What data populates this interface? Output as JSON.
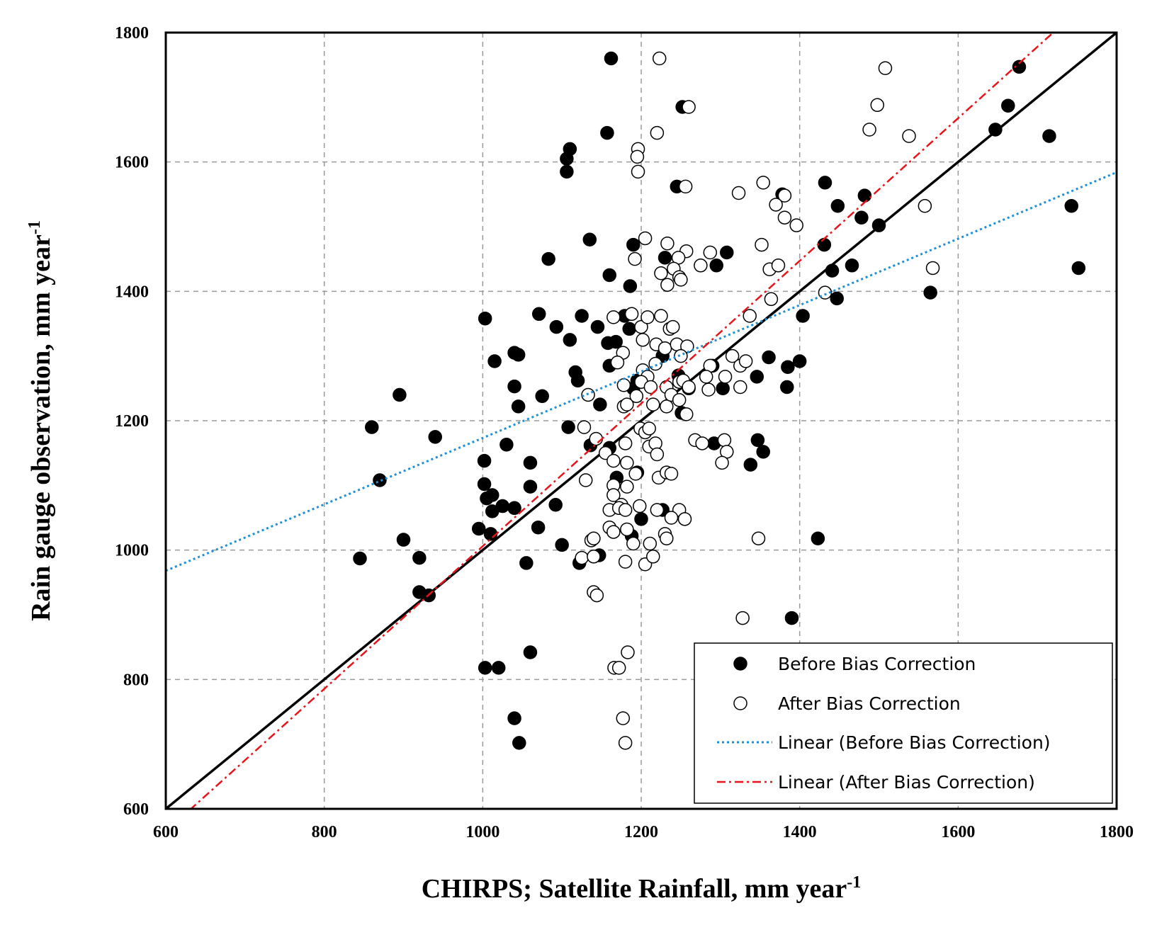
{
  "chart_data": {
    "type": "scatter",
    "title": "",
    "xlabel": "CHIRPS; Satellite Rainfall, mm year",
    "xlabel_sup": "-1",
    "ylabel": "Rain gauge observation, mm year",
    "ylabel_sup": "-1",
    "xlim": [
      600,
      1800
    ],
    "ylim": [
      600,
      1800
    ],
    "xticks": [
      "600",
      "800",
      "1000",
      "1200",
      "1400",
      "1600",
      "1800"
    ],
    "yticks": [
      "600",
      "800",
      "1000",
      "1200",
      "1400",
      "1600",
      "1800"
    ],
    "grid": true,
    "legend_position": "bottom-right",
    "colors": {
      "before": "#000000",
      "after": "#ffffff",
      "one_to_one": "#000000",
      "trend_before": "#1e90d6",
      "trend_after": "#e8141a"
    },
    "series": [
      {
        "name": "Before Bias Correction",
        "marker": "filled-circle",
        "points": [
          [
            1162,
            1760
          ],
          [
            1252,
            1685
          ],
          [
            1157,
            1645
          ],
          [
            1110,
            1620
          ],
          [
            1106,
            1605
          ],
          [
            1106,
            1585
          ],
          [
            1245,
            1562
          ],
          [
            1135,
            1480
          ],
          [
            1190,
            1472
          ],
          [
            1083,
            1450
          ],
          [
            1230,
            1452
          ],
          [
            1160,
            1425
          ],
          [
            1186,
            1408
          ],
          [
            1295,
            1440
          ],
          [
            1308,
            1460
          ],
          [
            1432,
            1568
          ],
          [
            1482,
            1548
          ],
          [
            1448,
            1532
          ],
          [
            1478,
            1514
          ],
          [
            1431,
            1472
          ],
          [
            1466,
            1440
          ],
          [
            1441,
            1432
          ],
          [
            1500,
            1502
          ],
          [
            1447,
            1389
          ],
          [
            1378,
            1550
          ],
          [
            1663,
            1687
          ],
          [
            1677,
            1747
          ],
          [
            1647,
            1650
          ],
          [
            1715,
            1640
          ],
          [
            1743,
            1532
          ],
          [
            1752,
            1436
          ],
          [
            1565,
            1398
          ],
          [
            1404,
            1362
          ],
          [
            1003,
            1358
          ],
          [
            1071,
            1365
          ],
          [
            1093,
            1345
          ],
          [
            1110,
            1325
          ],
          [
            1125,
            1362
          ],
          [
            1145,
            1345
          ],
          [
            1158,
            1320
          ],
          [
            1168,
            1322
          ],
          [
            1179,
            1362
          ],
          [
            1185,
            1342
          ],
          [
            1040,
            1305
          ],
          [
            1045,
            1302
          ],
          [
            1015,
            1292
          ],
          [
            1040,
            1253
          ],
          [
            1045,
            1222
          ],
          [
            1075,
            1238
          ],
          [
            895,
            1240
          ],
          [
            860,
            1190
          ],
          [
            940,
            1175
          ],
          [
            870,
            1108
          ],
          [
            1160,
            1285
          ],
          [
            1117,
            1275
          ],
          [
            1120,
            1262
          ],
          [
            1148,
            1225
          ],
          [
            1195,
            1262
          ],
          [
            1190,
            1250
          ],
          [
            1227,
            1300
          ],
          [
            1247,
            1270
          ],
          [
            1260,
            1250
          ],
          [
            1290,
            1285
          ],
          [
            1303,
            1250
          ],
          [
            1361,
            1298
          ],
          [
            1346,
            1268
          ],
          [
            1385,
            1283
          ],
          [
            1400,
            1292
          ],
          [
            1384,
            1252
          ],
          [
            1251,
            1212
          ],
          [
            1108,
            1190
          ],
          [
            1030,
            1163
          ],
          [
            1136,
            1162
          ],
          [
            1160,
            1158
          ],
          [
            1195,
            1120
          ],
          [
            1002,
            1138
          ],
          [
            1060,
            1135
          ],
          [
            1169,
            1112
          ],
          [
            1292,
            1165
          ],
          [
            1347,
            1170
          ],
          [
            1354,
            1152
          ],
          [
            1338,
            1132
          ],
          [
            1002,
            1102
          ],
          [
            1012,
            1085
          ],
          [
            1060,
            1098
          ],
          [
            1005,
            1080
          ],
          [
            1012,
            1060
          ],
          [
            1025,
            1068
          ],
          [
            1040,
            1065
          ],
          [
            1092,
            1070
          ],
          [
            995,
            1033
          ],
          [
            1010,
            1025
          ],
          [
            1070,
            1035
          ],
          [
            1200,
            1048
          ],
          [
            1227,
            1062
          ],
          [
            900,
            1016
          ],
          [
            845,
            987
          ],
          [
            920,
            988
          ],
          [
            1100,
            1008
          ],
          [
            1122,
            980
          ],
          [
            1147,
            992
          ],
          [
            1188,
            1022
          ],
          [
            1055,
            980
          ],
          [
            920,
            935
          ],
          [
            932,
            930
          ],
          [
            1423,
            1018
          ],
          [
            1390,
            895
          ],
          [
            1060,
            842
          ],
          [
            1003,
            818
          ],
          [
            1020,
            818
          ],
          [
            1040,
            740
          ],
          [
            1046,
            702
          ]
        ]
      },
      {
        "name": "After Bias Correction",
        "marker": "open-circle",
        "points": [
          [
            1223,
            1760
          ],
          [
            1260,
            1685
          ],
          [
            1220,
            1645
          ],
          [
            1196,
            1620
          ],
          [
            1195,
            1608
          ],
          [
            1196,
            1585
          ],
          [
            1256,
            1562
          ],
          [
            1508,
            1745
          ],
          [
            1498,
            1688
          ],
          [
            1488,
            1650
          ],
          [
            1538,
            1640
          ],
          [
            1558,
            1532
          ],
          [
            1568,
            1436
          ],
          [
            1323,
            1552
          ],
          [
            1354,
            1568
          ],
          [
            1381,
            1548
          ],
          [
            1370,
            1534
          ],
          [
            1381,
            1514
          ],
          [
            1396,
            1502
          ],
          [
            1352,
            1472
          ],
          [
            1362,
            1434
          ],
          [
            1373,
            1440
          ],
          [
            1364,
            1388
          ],
          [
            1432,
            1398
          ],
          [
            1337,
            1362
          ],
          [
            1205,
            1482
          ],
          [
            1192,
            1450
          ],
          [
            1233,
            1474
          ],
          [
            1257,
            1462
          ],
          [
            1247,
            1452
          ],
          [
            1241,
            1435
          ],
          [
            1225,
            1428
          ],
          [
            1248,
            1422
          ],
          [
            1233,
            1410
          ],
          [
            1250,
            1418
          ],
          [
            1275,
            1440
          ],
          [
            1287,
            1460
          ],
          [
            1165,
            1360
          ],
          [
            1188,
            1365
          ],
          [
            1200,
            1345
          ],
          [
            1208,
            1360
          ],
          [
            1225,
            1362
          ],
          [
            1236,
            1342
          ],
          [
            1240,
            1345
          ],
          [
            1202,
            1325
          ],
          [
            1219,
            1318
          ],
          [
            1230,
            1312
          ],
          [
            1245,
            1318
          ],
          [
            1258,
            1315
          ],
          [
            1218,
            1288
          ],
          [
            1250,
            1300
          ],
          [
            1177,
            1305
          ],
          [
            1170,
            1290
          ],
          [
            1202,
            1278
          ],
          [
            1208,
            1268
          ],
          [
            1200,
            1260
          ],
          [
            1212,
            1252
          ],
          [
            1248,
            1260
          ],
          [
            1232,
            1252
          ],
          [
            1253,
            1262
          ],
          [
            1260,
            1252
          ],
          [
            1287,
            1285
          ],
          [
            1282,
            1268
          ],
          [
            1285,
            1248
          ],
          [
            1315,
            1300
          ],
          [
            1306,
            1268
          ],
          [
            1325,
            1285
          ],
          [
            1332,
            1292
          ],
          [
            1325,
            1252
          ],
          [
            1133,
            1240
          ],
          [
            1178,
            1255
          ],
          [
            1194,
            1238
          ],
          [
            1178,
            1222
          ],
          [
            1182,
            1225
          ],
          [
            1215,
            1225
          ],
          [
            1232,
            1222
          ],
          [
            1238,
            1240
          ],
          [
            1248,
            1232
          ],
          [
            1257,
            1210
          ],
          [
            1128,
            1190
          ],
          [
            1199,
            1188
          ],
          [
            1205,
            1182
          ],
          [
            1210,
            1188
          ],
          [
            1143,
            1172
          ],
          [
            1180,
            1165
          ],
          [
            1210,
            1160
          ],
          [
            1218,
            1165
          ],
          [
            1220,
            1148
          ],
          [
            1155,
            1150
          ],
          [
            1165,
            1138
          ],
          [
            1182,
            1135
          ],
          [
            1268,
            1170
          ],
          [
            1277,
            1165
          ],
          [
            1305,
            1170
          ],
          [
            1308,
            1152
          ],
          [
            1302,
            1135
          ],
          [
            1130,
            1108
          ],
          [
            1165,
            1100
          ],
          [
            1165,
            1085
          ],
          [
            1175,
            1070
          ],
          [
            1182,
            1098
          ],
          [
            1193,
            1118
          ],
          [
            1222,
            1112
          ],
          [
            1232,
            1120
          ],
          [
            1238,
            1118
          ],
          [
            1160,
            1062
          ],
          [
            1172,
            1065
          ],
          [
            1180,
            1062
          ],
          [
            1198,
            1068
          ],
          [
            1220,
            1062
          ],
          [
            1248,
            1062
          ],
          [
            1238,
            1050
          ],
          [
            1255,
            1048
          ],
          [
            1160,
            1035
          ],
          [
            1165,
            1028
          ],
          [
            1182,
            1032
          ],
          [
            1190,
            1010
          ],
          [
            1211,
            1010
          ],
          [
            1230,
            1025
          ],
          [
            1232,
            1018
          ],
          [
            1137,
            1015
          ],
          [
            1140,
            1018
          ],
          [
            1125,
            988
          ],
          [
            1140,
            990
          ],
          [
            1180,
            982
          ],
          [
            1205,
            978
          ],
          [
            1215,
            990
          ],
          [
            1348,
            1018
          ],
          [
            1140,
            935
          ],
          [
            1144,
            930
          ],
          [
            1328,
            895
          ],
          [
            1183,
            842
          ],
          [
            1166,
            818
          ],
          [
            1172,
            818
          ],
          [
            1177,
            740
          ],
          [
            1180,
            702
          ]
        ]
      },
      {
        "name": "Linear (Before Bias Correction)",
        "line": [
          [
            600,
            968
          ],
          [
            1800,
            1584
          ]
        ]
      },
      {
        "name": "Linear (After Bias Correction)",
        "line": [
          [
            630,
            598
          ],
          [
            1720,
            1800
          ]
        ]
      }
    ],
    "reference_line": [
      [
        600,
        600
      ],
      [
        1800,
        1800
      ]
    ],
    "legend": {
      "before": "Before Bias Correction",
      "after": "After Bias Correction",
      "linear_before": "Linear (Before Bias Correction)",
      "linear_after": "Linear (After Bias Correction)"
    }
  }
}
